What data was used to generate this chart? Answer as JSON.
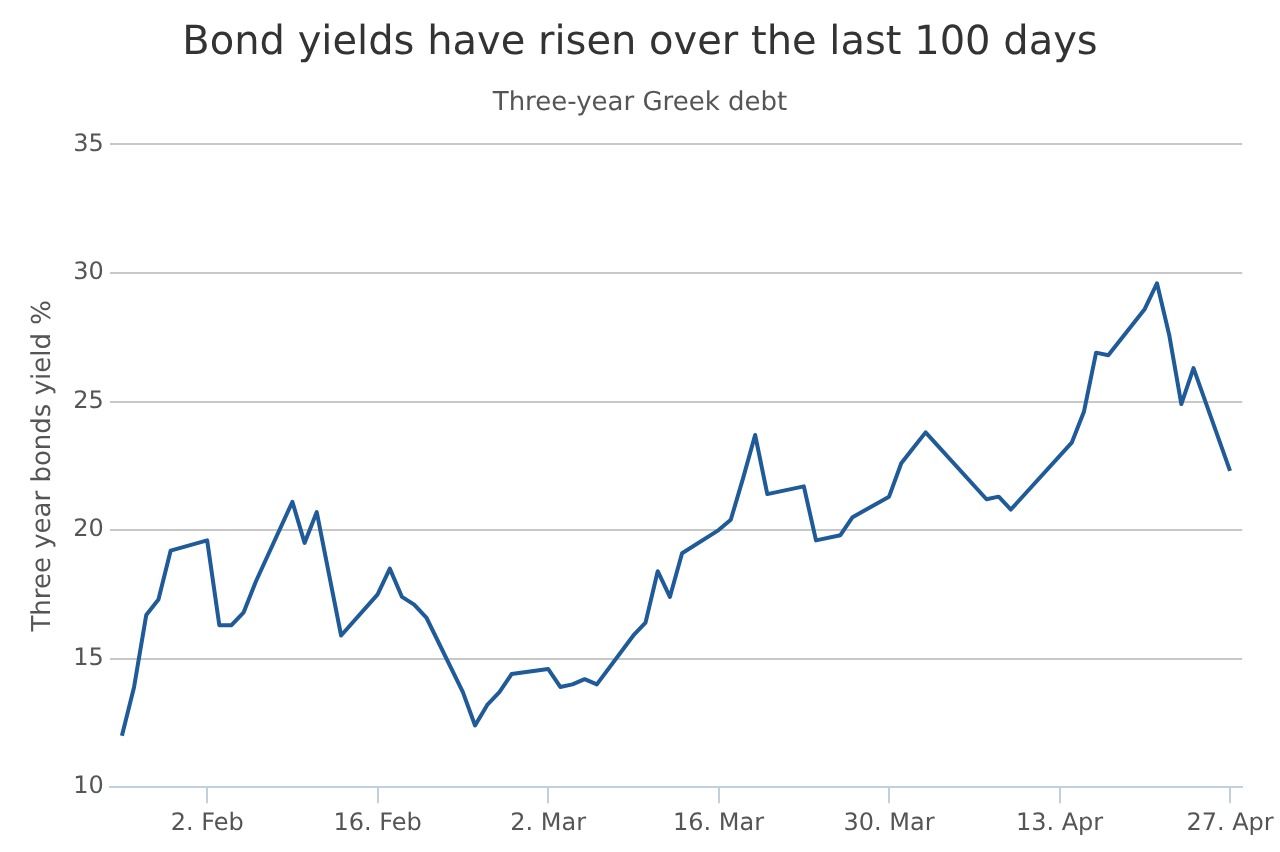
{
  "chart_data": {
    "type": "line",
    "title": "Bond yields have risen over the last 100 days",
    "subtitle": "Three-year Greek debt",
    "ylabel": "Three year bonds yield %",
    "x": [
      "--01-26",
      "--01-27",
      "--01-28",
      "--01-29",
      "--01-30",
      "--02-02",
      "--02-03",
      "--02-04",
      "--02-05",
      "--02-06",
      "--02-09",
      "--02-10",
      "--02-11",
      "--02-12",
      "--02-13",
      "--02-16",
      "--02-17",
      "--02-18",
      "--02-19",
      "--02-20",
      "--02-23",
      "--02-24",
      "--02-25",
      "--02-26",
      "--02-27",
      "--03-02",
      "--03-03",
      "--03-04",
      "--03-05",
      "--03-06",
      "--03-09",
      "--03-10",
      "--03-11",
      "--03-12",
      "--03-13",
      "--03-16",
      "--03-17",
      "--03-18",
      "--03-19",
      "--03-20",
      "--03-23",
      "--03-24",
      "--03-26",
      "--03-27",
      "--03-30",
      "--03-31",
      "--04-01",
      "--04-02",
      "--04-07",
      "--04-08",
      "--04-09",
      "--04-14",
      "--04-15",
      "--04-16",
      "--04-17",
      "--04-20",
      "--04-21",
      "--04-22",
      "--04-23",
      "--04-24",
      "--04-27"
    ],
    "series": [
      {
        "color": "#1f5a99",
        "values": [
          12.0,
          13.9,
          16.7,
          17.3,
          19.2,
          19.6,
          16.3,
          16.3,
          16.8,
          18.0,
          21.1,
          19.5,
          20.7,
          18.3,
          15.9,
          17.5,
          18.5,
          17.4,
          17.1,
          16.6,
          13.7,
          12.4,
          13.2,
          13.7,
          14.4,
          14.6,
          13.9,
          14.0,
          14.2,
          14.0,
          15.9,
          16.4,
          18.4,
          17.4,
          19.1,
          20.0,
          20.4,
          22.0,
          23.7,
          21.4,
          21.7,
          19.6,
          19.8,
          20.5,
          21.3,
          22.6,
          23.2,
          23.8,
          21.2,
          21.3,
          20.8,
          23.4,
          24.6,
          26.9,
          26.8,
          28.6,
          29.6,
          27.6,
          24.9,
          26.3,
          22.3
        ]
      }
    ],
    "xlim": [
      "--01-25",
      "--04-28"
    ],
    "xticks": [
      {
        "value": "--02-02",
        "label": "2. Feb"
      },
      {
        "value": "--02-16",
        "label": "16. Feb"
      },
      {
        "value": "--03-02",
        "label": "2. Mar"
      },
      {
        "value": "--03-16",
        "label": "16. Mar"
      },
      {
        "value": "--03-30",
        "label": "30. Mar"
      },
      {
        "value": "--04-13",
        "label": "13. Apr"
      },
      {
        "value": "--04-27",
        "label": "27. Apr"
      }
    ],
    "ylim": [
      10,
      35
    ],
    "yticks": [
      10,
      15,
      20,
      25,
      30,
      35
    ],
    "grid": "y",
    "legend": false,
    "marker": "none",
    "line_style": "solid"
  }
}
